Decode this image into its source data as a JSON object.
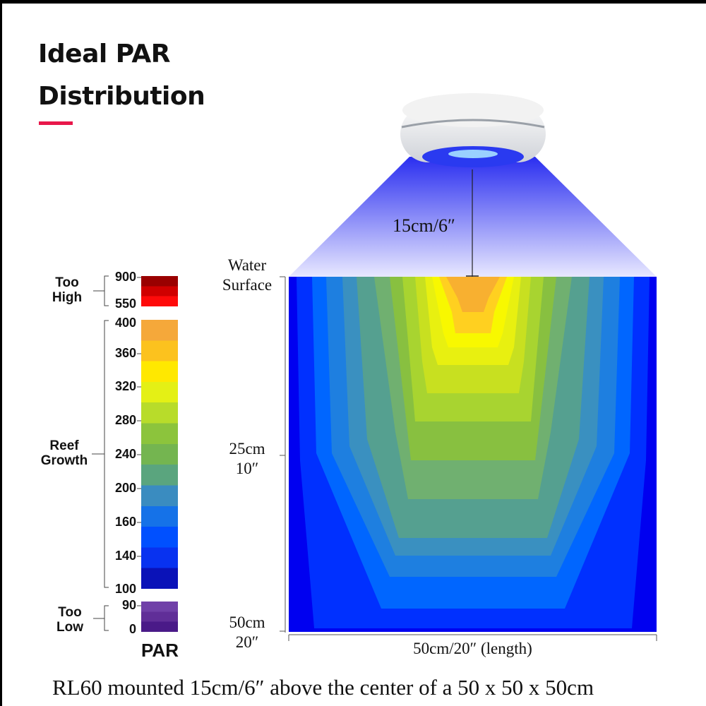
{
  "title": {
    "line1": "Ideal PAR",
    "line2": "Distribution"
  },
  "accent_color": "#e8174a",
  "lamp": {
    "model": "RL60",
    "height_label": "15cm/6″"
  },
  "tank": {
    "water_surface_label": [
      "Water",
      "Surface"
    ],
    "depth_labels": [
      {
        "cm": "25cm",
        "in": "10″"
      },
      {
        "cm": "50cm",
        "in": "20″"
      }
    ],
    "length_label": "50cm/20″ (length)"
  },
  "legend": {
    "unit": "PAR",
    "groups": [
      {
        "label": [
          "Too",
          "High"
        ],
        "ticks": [
          "900",
          "550"
        ],
        "colors": [
          "#9a0000",
          "#d00000",
          "#ff0a0a"
        ]
      },
      {
        "label": [
          "Reef",
          "Growth"
        ],
        "ticks": [
          "400",
          "360",
          "320",
          "280",
          "240",
          "200",
          "160",
          "140",
          "100"
        ],
        "colors": [
          "#f5a83a",
          "#fcc21e",
          "#ffe800",
          "#e4f015",
          "#b8dc2a",
          "#8cc43c",
          "#74b550",
          "#5aa57e",
          "#3a8cc0",
          "#1572e8",
          "#0050ff",
          "#0832f0",
          "#0a12b8"
        ]
      },
      {
        "label": [
          "Too",
          "Low"
        ],
        "ticks": [
          "90",
          "0"
        ],
        "colors": [
          "#7040a8",
          "#602e98",
          "#4a1a88"
        ]
      }
    ]
  },
  "caption": "RL60 mounted 15cm/6″ above the center of a 50 x 50 x 50cm"
}
